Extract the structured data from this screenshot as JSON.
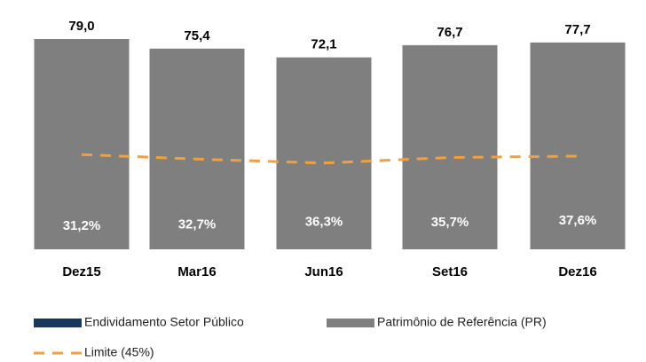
{
  "chart_data": {
    "type": "bar",
    "categories": [
      "Dez15",
      "Mar16",
      "Jun16",
      "Set16",
      "Dez16"
    ],
    "series": [
      {
        "name": "Endividamento Setor Público",
        "color": "#17375e",
        "axis": "y2",
        "values": [
          31.2,
          32.7,
          36.3,
          35.7,
          37.6
        ],
        "value_labels": [
          "31,2%",
          "32,7%",
          "36,3%",
          "35,7%",
          "37,6%"
        ]
      },
      {
        "name": "Patrimônio de Referência (PR)",
        "color": "#7f7f7f",
        "values": [
          79.0,
          75.4,
          72.1,
          76.7,
          77.7
        ],
        "value_labels": [
          "79,0",
          "75,4",
          "72,1",
          "76,7",
          "77,7"
        ]
      },
      {
        "name": "Limite (45%)",
        "color": "#f0a040",
        "type": "line",
        "dashed": true,
        "values": [
          35.6,
          33.9,
          32.4,
          34.5,
          35.0
        ]
      }
    ]
  }
}
